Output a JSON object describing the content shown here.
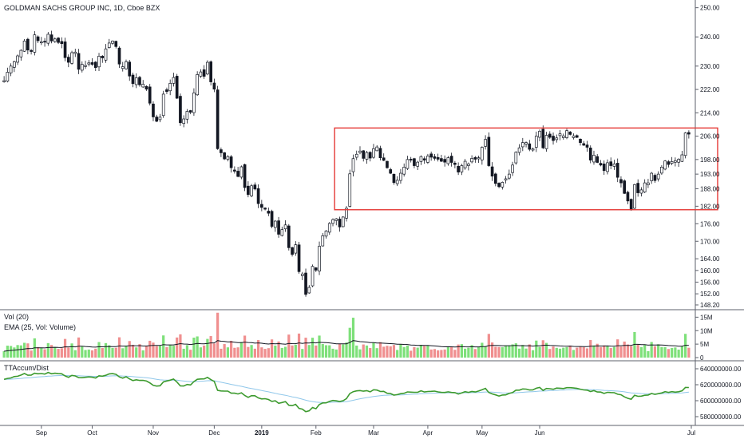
{
  "chart_data": [
    {
      "type": "candlestick",
      "title": "GOLDMAN SACHS GROUP INC, 1D, Cboe BZX",
      "yticks": [
        "250.00",
        "240.00",
        "230.00",
        "222.00",
        "214.00",
        "206.00",
        "198.00",
        "193.00",
        "188.00",
        "182.00",
        "176.00",
        "170.00",
        "164.00",
        "160.00",
        "156.00",
        "152.00",
        "148.20"
      ],
      "ylim": [
        148.2,
        251
      ],
      "xticks": [
        "Sep",
        "Oct",
        "Nov",
        "Dec",
        "2019",
        "Feb",
        "Mar",
        "Apr",
        "May",
        "Jun",
        "Jul"
      ],
      "annotation": {
        "type": "rectangle",
        "color": "#e53935",
        "y_top": 208.8,
        "y_bottom": 180.8,
        "x_start_index": 98,
        "x_end_index": 210
      },
      "series": [
        {
          "values_close": [
            225.0,
            227.9,
            230.0,
            231.5,
            233.5,
            235.4,
            238.6,
            235.5,
            235.0,
            240.7,
            238.7,
            238.3,
            238.2,
            240.9,
            238.6,
            239.3,
            238.1,
            237.7,
            232.9,
            231.3,
            234.6,
            234.8,
            228.9,
            230.6,
            230.2,
            231.1,
            230.6,
            229.5,
            233.4,
            232.8,
            235.9,
            237.9,
            238.6,
            236.7,
            230.7,
            229.8,
            231.5,
            226.6,
            224.0,
            226.0,
            223.6,
            223.8,
            222.1,
            217.3,
            212.6,
            211.1,
            212.5,
            220.4,
            221.3,
            224.1,
            226.1,
            219.0,
            210.6,
            211.9,
            214.5,
            214.2,
            220.8,
            227.1,
            228.0,
            226.5,
            231.3,
            224.6,
            222.1,
            201.7,
            200.3,
            198.2,
            199.0,
            195.2,
            194.0,
            192.2,
            195.5,
            188.4,
            186.0,
            189.0,
            187.9,
            182.9,
            181.6,
            181.0,
            179.6,
            175.1,
            176.9,
            172.4,
            174.0,
            175.6,
            167.8,
            165.5,
            168.8,
            159.6,
            158.8,
            151.8,
            154.2,
            161.4,
            160.1,
            168.3,
            171.9,
            173.5,
            176.1,
            177.4,
            177.7,
            174.9,
            178.3,
            181.3,
            193.1,
            198.3,
            199.8,
            200.9,
            198.4,
            200.4,
            198.5,
            201.7,
            202.3,
            198.6,
            197.7,
            195.2,
            193.3,
            190.1,
            190.9,
            193.3,
            195.4,
            198.0,
            197.8,
            195.9,
            197.1,
            199.0,
            197.8,
            199.2,
            198.8,
            198.4,
            198.1,
            197.4,
            197.1,
            198.6,
            197.0,
            196.3,
            193.7,
            195.9,
            197.4,
            196.5,
            198.4,
            198.1,
            198.6,
            202.2,
            204.9,
            195.9,
            192.3,
            189.8,
            188.7,
            190.2,
            191.4,
            193.0,
            196.1,
            200.5,
            202.0,
            203.8,
            203.8,
            201.5,
            201.6,
            206.0,
            207.7,
            202.0,
            206.3,
            205.6,
            204.5,
            205.4,
            206.8,
            206.1,
            207.9,
            206.6,
            206.1,
            205.6,
            203.8,
            202.9,
            202.2,
            197.8,
            199.5,
            197.0,
            196.1,
            194.2,
            196.9,
            195.9,
            196.5,
            191.9,
            190.0,
            186.4,
            183.8,
            180.9,
            189.4,
            186.6,
            187.6,
            190.0,
            190.0,
            193.3,
            190.8,
            193.0,
            195.4,
            197.5,
            196.3,
            197.3,
            197.6,
            198.1,
            199.6,
            207.1,
            206.7
          ]
        },
        {
          "name": "Vol (20)",
          "axis_ticks": [
            "15M",
            "10M",
            "5M",
            "0"
          ]
        },
        {
          "name": "EMA (25, Vol: Volume)"
        },
        {
          "name": "TTAccum/Dist",
          "axis_ticks": [
            "640000000.00",
            "620000000.00",
            "600000000.00",
            "580000000.00"
          ]
        }
      ]
    }
  ]
}
